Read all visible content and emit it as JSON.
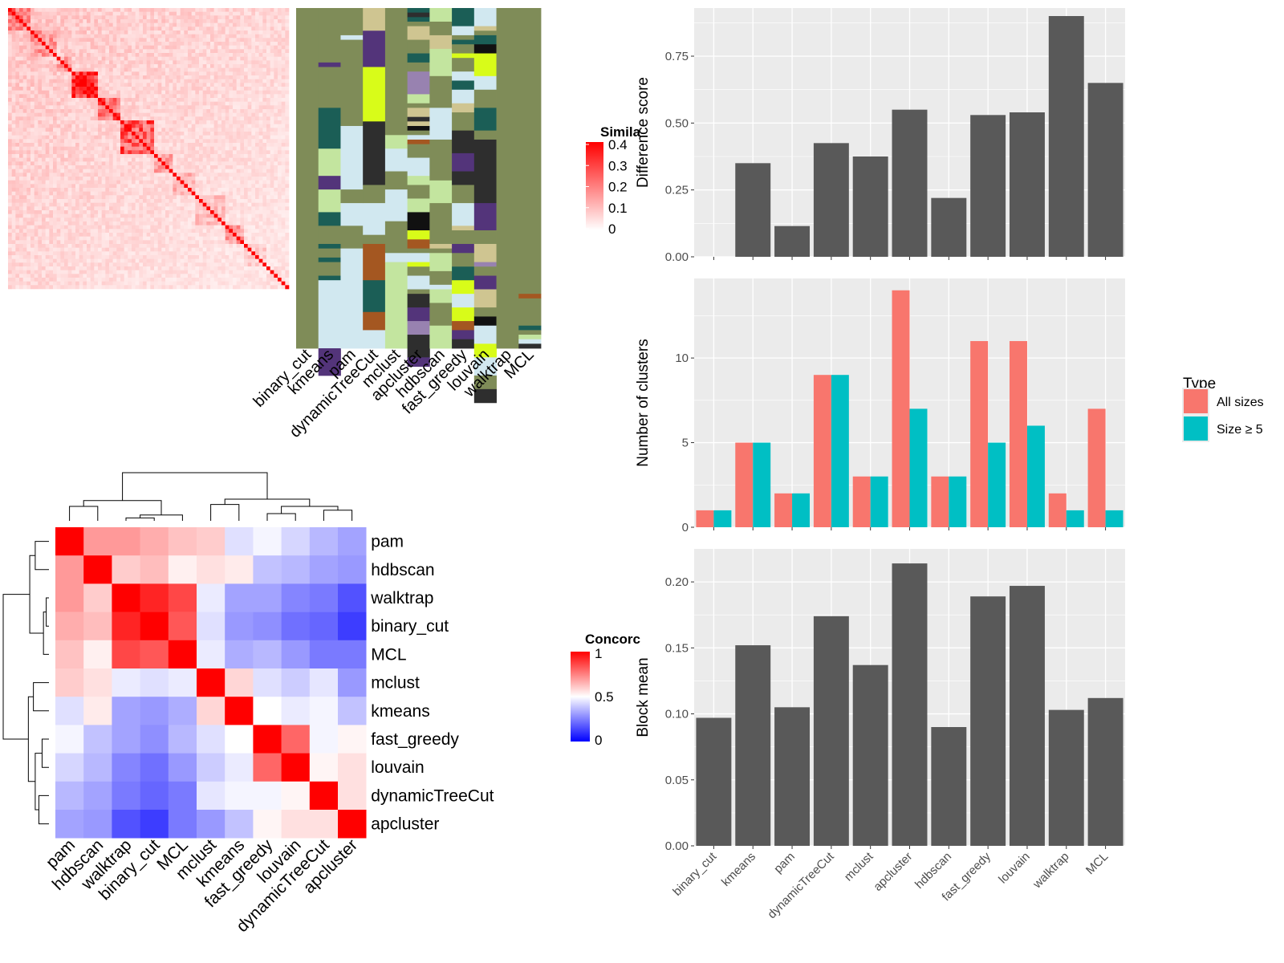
{
  "colors": {
    "panel_bg": "#ebebeb",
    "grid": "#ffffff",
    "bar": "#595959",
    "all_sizes": "#f8766d",
    "size_ge5": "#00bfc4",
    "sim_low": "#ffffff",
    "sim_high": "#ff0000",
    "conc_low": "#0000ff",
    "conc_mid": "#ffffff",
    "conc_high": "#ff0000",
    "class_palette": [
      "#7f8c58",
      "#1b5e56",
      "#d1e8f0",
      "#c3e59f",
      "#cfc591",
      "#53347a",
      "#d8fc19",
      "#2e2e2e",
      "#a45721",
      "#9882b0",
      "#111111"
    ]
  },
  "methods_order": [
    "binary_cut",
    "kmeans",
    "pam",
    "dynamicTreeCut",
    "mclust",
    "apcluster",
    "hdbscan",
    "fast_greedy",
    "louvain",
    "walktrap",
    "MCL"
  ],
  "chart_data": [
    {
      "type": "heatmap",
      "title": "",
      "legend_title": "Similarity",
      "legend_title_visible": "Simila",
      "legend_ticks": [
        "0",
        "0.1",
        "0.2",
        "0.3",
        "0.4"
      ],
      "range": [
        0,
        0.4
      ],
      "n": 75,
      "block_sizes": [
        6,
        7,
        4,
        7,
        6,
        9,
        5,
        6,
        8,
        5,
        6,
        6
      ],
      "block_levels": [
        0.22,
        0.18,
        0.16,
        0.35,
        0.22,
        0.27,
        0.14,
        0.12,
        0.1,
        0.15,
        0.08,
        0.05
      ],
      "background_level": 0.09,
      "diagonal_value": 0.42
    },
    {
      "type": "heatmap",
      "title": "",
      "columns": [
        "binary_cut",
        "kmeans",
        "pam",
        "dynamicTreeCut",
        "mclust",
        "apcluster",
        "hdbscan",
        "fast_greedy",
        "louvain",
        "walktrap",
        "MCL"
      ],
      "n_rows": 75,
      "cluster_runs": [
        [
          [
            75,
            0
          ]
        ],
        [
          [
            12,
            0
          ],
          [
            1,
            5
          ],
          [
            9,
            0
          ],
          [
            9,
            1
          ],
          [
            6,
            3
          ],
          [
            3,
            5
          ],
          [
            5,
            3
          ],
          [
            3,
            1
          ],
          [
            4,
            0
          ],
          [
            1,
            1
          ],
          [
            2,
            0
          ],
          [
            1,
            1
          ],
          [
            3,
            0
          ],
          [
            1,
            1
          ],
          [
            15,
            2
          ],
          [
            6,
            5
          ]
        ],
        [
          [
            6,
            0
          ],
          [
            1,
            2
          ],
          [
            19,
            0
          ],
          [
            14,
            2
          ],
          [
            3,
            0
          ],
          [
            5,
            2
          ],
          [
            5,
            0
          ],
          [
            1,
            2
          ],
          [
            21,
            2
          ]
        ],
        [
          [
            5,
            4
          ],
          [
            8,
            5
          ],
          [
            12,
            6
          ],
          [
            14,
            7
          ],
          [
            4,
            0
          ],
          [
            7,
            2
          ],
          [
            2,
            0
          ],
          [
            8,
            8
          ],
          [
            7,
            1
          ],
          [
            4,
            8
          ],
          [
            4,
            2
          ]
        ],
        [
          [
            28,
            0
          ],
          [
            3,
            3
          ],
          [
            5,
            2
          ],
          [
            4,
            0
          ],
          [
            7,
            2
          ],
          [
            7,
            0
          ],
          [
            2,
            2
          ],
          [
            19,
            3
          ]
        ],
        [
          [
            1,
            1
          ],
          [
            1,
            7
          ],
          [
            1,
            1
          ],
          [
            1,
            0
          ],
          [
            3,
            4
          ],
          [
            3,
            0
          ],
          [
            2,
            1
          ],
          [
            2,
            0
          ],
          [
            5,
            9
          ],
          [
            2,
            3
          ],
          [
            1,
            0
          ],
          [
            2,
            4
          ],
          [
            1,
            7
          ],
          [
            1,
            4
          ],
          [
            1,
            10
          ],
          [
            1,
            0
          ],
          [
            1,
            2
          ],
          [
            1,
            8
          ],
          [
            3,
            0
          ],
          [
            4,
            2
          ],
          [
            2,
            3
          ],
          [
            3,
            0
          ],
          [
            3,
            3
          ],
          [
            4,
            10
          ],
          [
            2,
            6
          ],
          [
            2,
            8
          ],
          [
            1,
            0
          ],
          [
            2,
            2
          ],
          [
            1,
            6
          ],
          [
            2,
            0
          ],
          [
            3,
            2
          ],
          [
            1,
            0
          ],
          [
            3,
            7
          ],
          [
            3,
            5
          ],
          [
            3,
            9
          ],
          [
            5,
            7
          ],
          [
            2,
            5
          ]
        ],
        [
          [
            3,
            3
          ],
          [
            3,
            0
          ],
          [
            3,
            4
          ],
          [
            6,
            3
          ],
          [
            7,
            0
          ],
          [
            7,
            2
          ],
          [
            9,
            0
          ],
          [
            5,
            3
          ],
          [
            9,
            0
          ],
          [
            1,
            4
          ],
          [
            1,
            0
          ],
          [
            4,
            3
          ],
          [
            3,
            0
          ],
          [
            1,
            2
          ],
          [
            3,
            3
          ],
          [
            5,
            0
          ],
          [
            5,
            3
          ]
        ],
        [
          [
            4,
            1
          ],
          [
            2,
            2
          ],
          [
            1,
            0
          ],
          [
            1,
            1
          ],
          [
            2,
            0
          ],
          [
            1,
            6
          ],
          [
            3,
            0
          ],
          [
            2,
            2
          ],
          [
            2,
            1
          ],
          [
            3,
            2
          ],
          [
            2,
            4
          ],
          [
            4,
            0
          ],
          [
            5,
            7
          ],
          [
            4,
            5
          ],
          [
            3,
            7
          ],
          [
            4,
            0
          ],
          [
            5,
            2
          ],
          [
            1,
            4
          ],
          [
            3,
            0
          ],
          [
            2,
            5
          ],
          [
            3,
            0
          ],
          [
            3,
            1
          ],
          [
            3,
            6
          ],
          [
            3,
            2
          ],
          [
            3,
            6
          ],
          [
            2,
            8
          ],
          [
            2,
            5
          ],
          [
            2,
            7
          ]
        ],
        [
          [
            4,
            2
          ],
          [
            1,
            4
          ],
          [
            1,
            0
          ],
          [
            2,
            1
          ],
          [
            2,
            10
          ],
          [
            5,
            6
          ],
          [
            3,
            2
          ],
          [
            4,
            0
          ],
          [
            5,
            1
          ],
          [
            2,
            0
          ],
          [
            3,
            7
          ],
          [
            11,
            7
          ],
          [
            6,
            5
          ],
          [
            3,
            0
          ],
          [
            4,
            4
          ],
          [
            1,
            9
          ],
          [
            2,
            0
          ],
          [
            3,
            5
          ],
          [
            4,
            4
          ],
          [
            2,
            0
          ],
          [
            2,
            10
          ],
          [
            4,
            2
          ],
          [
            3,
            6
          ],
          [
            4,
            2
          ],
          [
            3,
            0
          ],
          [
            3,
            7
          ]
        ],
        [
          [
            75,
            0
          ]
        ],
        [
          [
            63,
            0
          ],
          [
            1,
            8
          ],
          [
            6,
            0
          ],
          [
            1,
            1
          ],
          [
            1,
            0
          ],
          [
            1,
            3
          ],
          [
            1,
            2
          ],
          [
            1,
            7
          ]
        ]
      ]
    },
    {
      "type": "heatmap",
      "title": "",
      "legend_title": "Concordance",
      "legend_title_visible": "Concorc",
      "legend_ticks": [
        "0",
        "0.5",
        "1"
      ],
      "range": [
        0,
        1
      ],
      "row_labels": [
        "pam",
        "hdbscan",
        "walktrap",
        "binary_cut",
        "MCL",
        "mclust",
        "kmeans",
        "fast_greedy",
        "louvain",
        "dynamicTreeCut",
        "apcluster"
      ],
      "col_labels": [
        "pam",
        "hdbscan",
        "walktrap",
        "binary_cut",
        "MCL",
        "mclust",
        "kmeans",
        "fast_greedy",
        "louvain",
        "dynamicTreeCut",
        "apcluster"
      ],
      "matrix": [
        [
          1.0,
          0.7,
          0.7,
          0.66,
          0.62,
          0.6,
          0.44,
          0.48,
          0.42,
          0.36,
          0.32
        ],
        [
          0.7,
          1.0,
          0.6,
          0.63,
          0.53,
          0.56,
          0.54,
          0.38,
          0.36,
          0.32,
          0.3
        ],
        [
          0.7,
          0.6,
          1.0,
          0.93,
          0.86,
          0.46,
          0.32,
          0.32,
          0.26,
          0.24,
          0.16
        ],
        [
          0.66,
          0.63,
          0.93,
          1.0,
          0.83,
          0.44,
          0.3,
          0.28,
          0.22,
          0.2,
          0.12
        ],
        [
          0.62,
          0.53,
          0.86,
          0.83,
          1.0,
          0.46,
          0.34,
          0.36,
          0.3,
          0.24,
          0.24
        ],
        [
          0.6,
          0.56,
          0.46,
          0.44,
          0.46,
          1.0,
          0.58,
          0.44,
          0.4,
          0.45,
          0.3
        ],
        [
          0.44,
          0.54,
          0.32,
          0.3,
          0.34,
          0.58,
          1.0,
          0.5,
          0.46,
          0.48,
          0.38
        ],
        [
          0.48,
          0.38,
          0.32,
          0.28,
          0.36,
          0.44,
          0.5,
          1.0,
          0.8,
          0.48,
          0.52
        ],
        [
          0.42,
          0.36,
          0.26,
          0.22,
          0.3,
          0.4,
          0.46,
          0.8,
          1.0,
          0.52,
          0.56
        ],
        [
          0.36,
          0.32,
          0.24,
          0.2,
          0.24,
          0.45,
          0.48,
          0.48,
          0.52,
          1.0,
          0.56
        ],
        [
          0.32,
          0.3,
          0.16,
          0.12,
          0.24,
          0.3,
          0.38,
          0.52,
          0.56,
          0.56,
          1.0
        ]
      ]
    },
    {
      "type": "bar",
      "title": "",
      "xlabel": "",
      "ylabel": "Difference score",
      "categories": [
        "binary_cut",
        "kmeans",
        "pam",
        "dynamicTreeCut",
        "mclust",
        "apcluster",
        "hdbscan",
        "fast_greedy",
        "louvain",
        "walktrap",
        "MCL"
      ],
      "values": [
        0.0,
        0.35,
        0.115,
        0.425,
        0.375,
        0.55,
        0.22,
        0.53,
        0.54,
        0.9,
        0.65
      ],
      "ylim": [
        0,
        0.93
      ],
      "yticks": [
        0,
        0.25,
        0.5,
        0.75
      ],
      "ytick_labels": [
        "0.00",
        "0.25",
        "0.50",
        "0.75"
      ],
      "grid": true
    },
    {
      "type": "bar",
      "title": "",
      "xlabel": "",
      "ylabel": "Number of clusters",
      "categories": [
        "binary_cut",
        "kmeans",
        "pam",
        "dynamicTreeCut",
        "mclust",
        "apcluster",
        "hdbscan",
        "fast_greedy",
        "louvain",
        "walktrap",
        "MCL"
      ],
      "series": [
        {
          "name": "All sizes",
          "values": [
            1,
            5,
            2,
            9,
            3,
            14,
            3,
            11,
            11,
            2,
            7
          ]
        },
        {
          "name": "Size ≥ 5",
          "values": [
            1,
            5,
            2,
            9,
            3,
            7,
            3,
            5,
            6,
            1,
            1
          ]
        }
      ],
      "ylim": [
        0,
        14.7
      ],
      "yticks": [
        0,
        5,
        10
      ],
      "ytick_labels": [
        "0",
        "5",
        "10"
      ],
      "legend_title": "Type",
      "legend_position": "right",
      "grid": true
    },
    {
      "type": "bar",
      "title": "",
      "xlabel": "",
      "ylabel": "Block mean",
      "categories": [
        "binary_cut",
        "kmeans",
        "pam",
        "dynamicTreeCut",
        "mclust",
        "apcluster",
        "hdbscan",
        "fast_greedy",
        "louvain",
        "walktrap",
        "MCL"
      ],
      "values": [
        0.097,
        0.152,
        0.105,
        0.174,
        0.137,
        0.214,
        0.09,
        0.189,
        0.197,
        0.103,
        0.112
      ],
      "ylim": [
        0,
        0.225
      ],
      "yticks": [
        0,
        0.05,
        0.1,
        0.15,
        0.2
      ],
      "ytick_labels": [
        "0.00",
        "0.05",
        "0.10",
        "0.15",
        "0.20"
      ],
      "grid": true
    }
  ]
}
